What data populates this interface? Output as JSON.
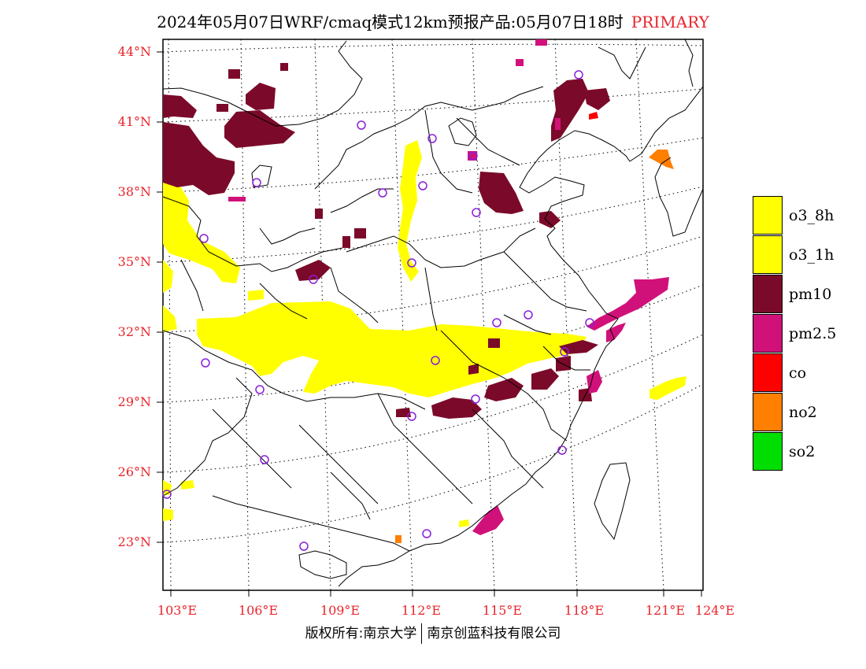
{
  "header": {
    "title": "2024年05月07日WRF/cmaq模式12km预报产品:05月07日18时",
    "primary_label": "PRIMARY"
  },
  "map": {
    "lat_labels": [
      "44°N",
      "41°N",
      "38°N",
      "35°N",
      "32°N",
      "29°N",
      "26°N",
      "23°N"
    ],
    "lon_labels": [
      "103°E",
      "106°E",
      "109°E",
      "112°E",
      "115°E",
      "118°E",
      "121°E",
      "124°E"
    ],
    "station_marker_icon": "circle-icon"
  },
  "legend": {
    "items": [
      {
        "label": "o3_8h",
        "color": "#ffff00"
      },
      {
        "label": "o3_1h",
        "color": "#ffff00"
      },
      {
        "label": "pm10",
        "color": "#7b0a2a"
      },
      {
        "label": "pm2.5",
        "color": "#d1117a"
      },
      {
        "label": "co",
        "color": "#ff0000"
      },
      {
        "label": "no2",
        "color": "#ff7f00"
      },
      {
        "label": "so2",
        "color": "#00dd00"
      }
    ]
  },
  "footer": {
    "copyright_left": "版权所有:南京大学",
    "copyright_right": "南京创蓝科技有限公司"
  },
  "colors": {
    "axis_label": "#e8242b",
    "o3": "#ffff00",
    "pm10": "#7b0a2a",
    "pm25": "#d1117a",
    "co": "#ff0000",
    "no2": "#ff7f00",
    "so2": "#00dd00",
    "station": "#8a1fd8"
  }
}
